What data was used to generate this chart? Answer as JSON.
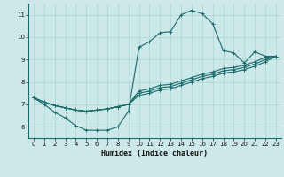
{
  "xlabel": "Humidex (Indice chaleur)",
  "bg_color": "#cce8e8",
  "line_color": "#1a6b6b",
  "grid_color": "#aad4d4",
  "xlim": [
    -0.5,
    23.5
  ],
  "ylim": [
    5.5,
    11.5
  ],
  "xticks": [
    0,
    1,
    2,
    3,
    4,
    5,
    6,
    7,
    8,
    9,
    10,
    11,
    12,
    13,
    14,
    15,
    16,
    17,
    18,
    19,
    20,
    21,
    22,
    23
  ],
  "yticks": [
    6,
    7,
    8,
    9,
    10,
    11
  ],
  "line1_x": [
    0,
    1,
    2,
    3,
    4,
    5,
    6,
    7,
    8,
    9,
    10,
    11,
    12,
    13,
    14,
    15,
    16,
    17,
    18,
    19,
    20,
    21,
    22,
    23
  ],
  "line1_y": [
    7.3,
    7.0,
    6.65,
    6.4,
    6.05,
    5.85,
    5.85,
    5.85,
    6.0,
    6.7,
    9.55,
    9.8,
    10.2,
    10.25,
    11.0,
    11.2,
    11.05,
    10.6,
    9.4,
    9.3,
    8.85,
    9.35,
    9.15,
    9.15
  ],
  "line2_x": [
    0,
    1,
    2,
    3,
    4,
    5,
    6,
    7,
    8,
    9,
    10,
    11,
    12,
    13,
    14,
    15,
    16,
    17,
    18,
    19,
    20,
    21,
    22,
    23
  ],
  "line2_y": [
    7.3,
    7.1,
    6.95,
    6.85,
    6.75,
    6.7,
    6.75,
    6.8,
    6.9,
    7.0,
    7.6,
    7.7,
    7.85,
    7.9,
    8.05,
    8.2,
    8.35,
    8.45,
    8.6,
    8.65,
    8.75,
    8.9,
    9.1,
    9.15
  ],
  "line3_x": [
    0,
    1,
    2,
    3,
    4,
    5,
    6,
    7,
    8,
    9,
    10,
    11,
    12,
    13,
    14,
    15,
    16,
    17,
    18,
    19,
    20,
    21,
    22,
    23
  ],
  "line3_y": [
    7.3,
    7.1,
    6.95,
    6.85,
    6.75,
    6.7,
    6.75,
    6.8,
    6.9,
    7.0,
    7.5,
    7.6,
    7.75,
    7.8,
    7.95,
    8.1,
    8.25,
    8.35,
    8.5,
    8.55,
    8.65,
    8.8,
    9.0,
    9.15
  ],
  "line4_x": [
    0,
    1,
    2,
    3,
    4,
    5,
    6,
    7,
    8,
    9,
    10,
    11,
    12,
    13,
    14,
    15,
    16,
    17,
    18,
    19,
    20,
    21,
    22,
    23
  ],
  "line4_y": [
    7.3,
    7.1,
    6.95,
    6.85,
    6.75,
    6.7,
    6.75,
    6.8,
    6.9,
    7.0,
    7.4,
    7.5,
    7.65,
    7.7,
    7.85,
    8.0,
    8.15,
    8.25,
    8.4,
    8.45,
    8.55,
    8.7,
    8.9,
    9.15
  ]
}
